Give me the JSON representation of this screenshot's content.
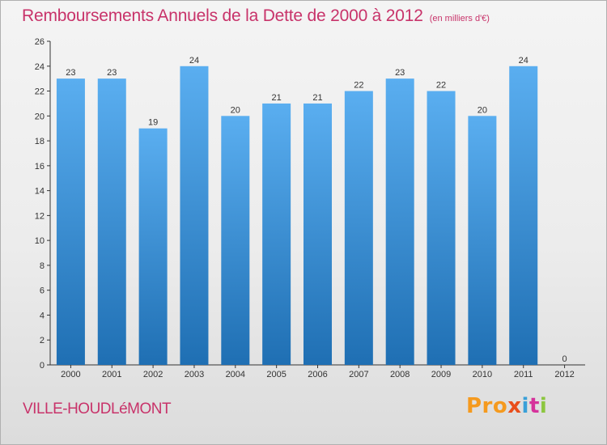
{
  "title": "Remboursements Annuels de la Dette de 2000 à 2012",
  "subtitle": "(en milliers d'€)",
  "commune": "VILLE-HOUDLéMONT",
  "logo": [
    "Pro",
    "x",
    "i",
    "t",
    "i"
  ],
  "colors": {
    "title": "#c8336a",
    "bar_top": "#5aaef0",
    "bar_bottom": "#1f6fb3",
    "axis": "#333333"
  },
  "chart_data": {
    "type": "bar",
    "categories": [
      "2000",
      "2001",
      "2002",
      "2003",
      "2004",
      "2005",
      "2006",
      "2007",
      "2008",
      "2009",
      "2010",
      "2011",
      "2012"
    ],
    "values": [
      23,
      23,
      19,
      24,
      20,
      21,
      21,
      22,
      23,
      22,
      20,
      24,
      0
    ],
    "value_labels": [
      "23",
      "23",
      "19",
      "24",
      "20",
      "21",
      "21",
      "22",
      "23",
      "22",
      "20",
      "24",
      "0"
    ],
    "ylim": [
      0,
      26
    ],
    "yticks": [
      0,
      2,
      4,
      6,
      8,
      10,
      12,
      14,
      16,
      18,
      20,
      22,
      24,
      26
    ],
    "grid": false,
    "xlabel": "",
    "ylabel": ""
  }
}
